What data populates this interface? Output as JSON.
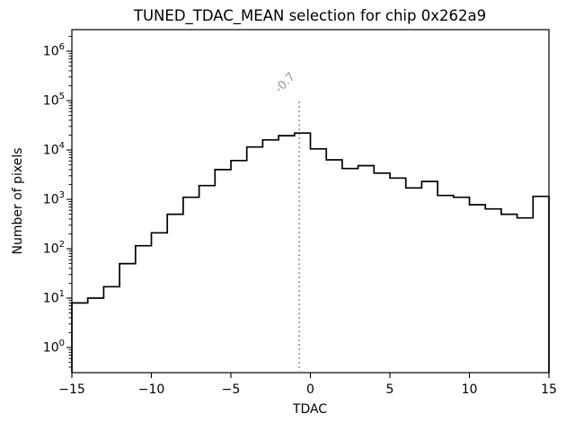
{
  "chart_data": {
    "type": "bar",
    "subtype": "step-histogram-log-y",
    "title": "TUNED_TDAC_MEAN selection for chip 0x262a9",
    "xlabel": "TDAC",
    "ylabel": "Number of pixels",
    "x_axis": {
      "min": -15,
      "max": 15,
      "tick_values": [
        -15,
        -10,
        -5,
        0,
        5,
        10,
        15
      ],
      "tick_labels": [
        "−15",
        "−10",
        "−5",
        "0",
        "5",
        "10",
        "15"
      ]
    },
    "y_axis": {
      "scale": "log",
      "min": 0.31,
      "max": 2732000,
      "base_label": "10",
      "major_tick_exponents": [
        0,
        1,
        2,
        3,
        4,
        5,
        6
      ],
      "minor_ticks": "2-9 per decade"
    },
    "bins": {
      "start": -15,
      "width": 1,
      "counts": [
        8,
        10,
        17,
        50,
        115,
        210,
        500,
        1100,
        1900,
        4000,
        6100,
        11500,
        16000,
        19500,
        22000,
        10500,
        6300,
        4200,
        4800,
        3400,
        2700,
        1700,
        2300,
        1200,
        1100,
        780,
        640,
        500,
        420,
        1150
      ]
    },
    "vline": {
      "x": -0.7,
      "label": "-0.7",
      "top_value": 100000,
      "style": "dotted",
      "color": "#969696"
    },
    "colors": {
      "line": "#000000",
      "axes": "#000000",
      "background": "#ffffff",
      "annotation": "#969696"
    },
    "legend": "none",
    "grid": false
  }
}
